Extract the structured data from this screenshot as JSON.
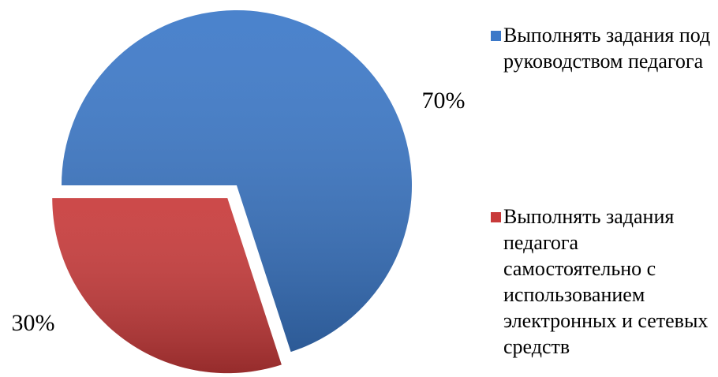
{
  "chart_data": {
    "type": "pie",
    "categories": [
      "Выполнять задания под руководством педагога",
      "Выполнять задания педагога самостоятельно с использованием электронных и сетевых средств"
    ],
    "values": [
      70,
      30
    ],
    "value_labels": [
      "70%",
      "30%"
    ],
    "colors": [
      "#3b78c8",
      "#c83a3a"
    ],
    "legend": "right"
  }
}
